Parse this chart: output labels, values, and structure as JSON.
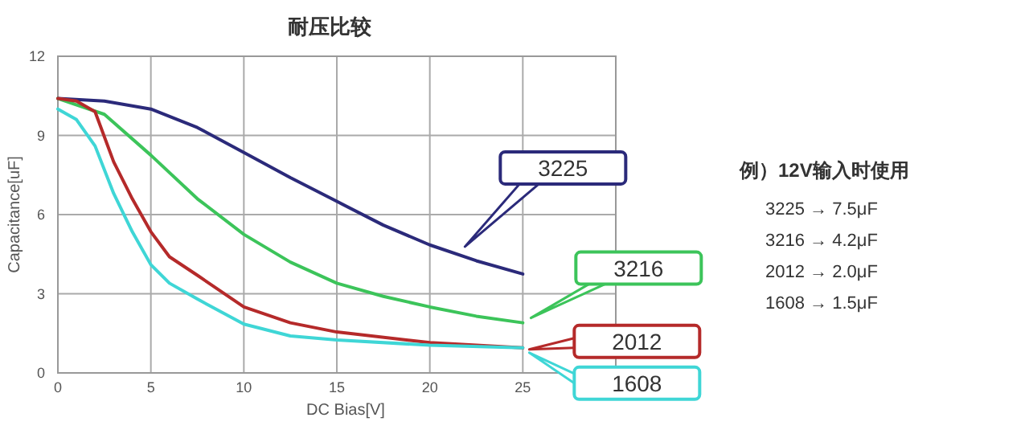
{
  "chart_data": {
    "type": "line",
    "title": "耐压比较",
    "xlabel": "DC Bias[V]",
    "ylabel": "Capacitance[uF]",
    "xlim": [
      0,
      30
    ],
    "xticks": [
      0,
      5,
      10,
      15,
      20,
      25,
      {
        "value": 30,
        "label": null
      }
    ],
    "ylim": [
      0,
      12
    ],
    "yticks": [
      0,
      3,
      6,
      9,
      12
    ],
    "grid": true,
    "legend": "right",
    "marker": "none",
    "line_style": "solid",
    "series": [
      {
        "name": "3225",
        "color": "#2b2a7a",
        "x": [
          0,
          2.5,
          5,
          7.5,
          10,
          12.5,
          15,
          17.5,
          20,
          22.5,
          25
        ],
        "values": [
          10.4,
          10.3,
          10.0,
          9.3,
          8.35,
          7.4,
          6.5,
          5.6,
          4.85,
          4.25,
          3.75
        ]
      },
      {
        "name": "3216",
        "color": "#3cc45a",
        "x": [
          0,
          2.5,
          5,
          7.5,
          10,
          12.5,
          15,
          17.5,
          20,
          22.5,
          25
        ],
        "values": [
          10.4,
          9.8,
          8.25,
          6.6,
          5.25,
          4.2,
          3.4,
          2.9,
          2.5,
          2.15,
          1.9
        ]
      },
      {
        "name": "2012",
        "color": "#b52a2a",
        "x": [
          0,
          1,
          2,
          3,
          4,
          5,
          6,
          7.5,
          10,
          12.5,
          15,
          20,
          25
        ],
        "values": [
          10.4,
          10.3,
          9.9,
          8.0,
          6.6,
          5.35,
          4.4,
          3.7,
          2.5,
          1.9,
          1.55,
          1.15,
          0.95
        ]
      },
      {
        "name": "1608",
        "color": "#3fd6d6",
        "x": [
          0,
          1,
          2,
          3,
          4,
          5,
          6,
          7.5,
          10,
          12.5,
          15,
          20,
          25
        ],
        "values": [
          10.0,
          9.6,
          8.6,
          6.8,
          5.35,
          4.1,
          3.4,
          2.8,
          1.85,
          1.4,
          1.25,
          1.05,
          0.95
        ]
      }
    ],
    "annotations": [
      "例）12V输入时使用",
      "3225 → 7.5μF",
      "3216 → 4.2μF",
      "2012 → 2.0μF",
      "1608 → 1.5μF"
    ]
  }
}
